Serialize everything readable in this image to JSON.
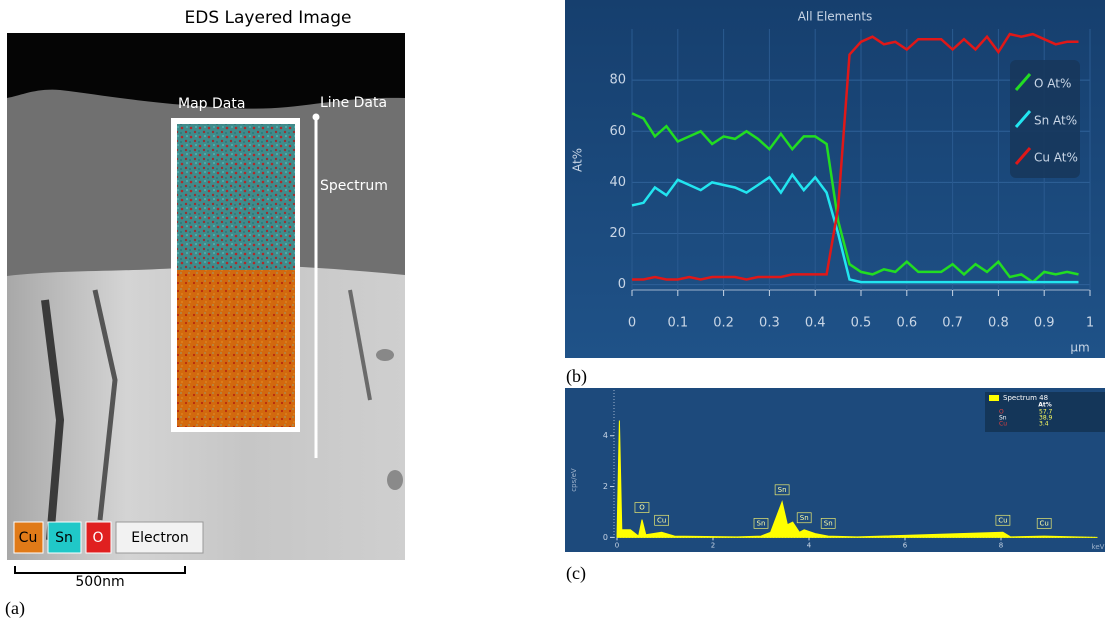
{
  "panel_a": {
    "title": "EDS Layered Image",
    "map_label": "Map Data",
    "line_label": "Line Data",
    "spectrum_label": "Spectrum",
    "legend": [
      "Cu",
      "Sn",
      "O",
      "Electron"
    ],
    "scale_bar": "500nm",
    "caption": "(a)"
  },
  "chart_data": [
    {
      "type": "line",
      "title": "All Elements",
      "ylabel": "At%",
      "xlabel": "µm",
      "caption": "(b)",
      "xlim": [
        0,
        1
      ],
      "xticks": [
        0,
        0.1,
        0.2,
        0.3,
        0.4,
        0.5,
        0.6,
        0.7,
        0.8,
        0.9,
        1
      ],
      "ylim": [
        -6,
        100
      ],
      "yticks": [
        0,
        20,
        40,
        60,
        80
      ],
      "grid": true,
      "legend": "upper right",
      "x": [
        0,
        0.025,
        0.05,
        0.075,
        0.1,
        0.125,
        0.15,
        0.175,
        0.2,
        0.225,
        0.25,
        0.275,
        0.3,
        0.325,
        0.35,
        0.375,
        0.4,
        0.425,
        0.45,
        0.475,
        0.5,
        0.525,
        0.55,
        0.575,
        0.6,
        0.625,
        0.65,
        0.675,
        0.7,
        0.725,
        0.75,
        0.775,
        0.8,
        0.825,
        0.85,
        0.875,
        0.9,
        0.925,
        0.95,
        0.975
      ],
      "series": [
        {
          "name": "O At%",
          "color": "#22dd22",
          "values": [
            67,
            65,
            58,
            62,
            56,
            58,
            60,
            55,
            58,
            57,
            60,
            57,
            53,
            59,
            53,
            58,
            58,
            55,
            25,
            8,
            5,
            4,
            6,
            5,
            9,
            5,
            5,
            5,
            8,
            4,
            8,
            5,
            9,
            3,
            4,
            1,
            5,
            4,
            5,
            4
          ]
        },
        {
          "name": "Sn At%",
          "color": "#22e5f0",
          "values": [
            31,
            32,
            38,
            35,
            41,
            39,
            37,
            40,
            39,
            38,
            36,
            39,
            42,
            36,
            43,
            37,
            42,
            36,
            20,
            2,
            1,
            1,
            1,
            1,
            1,
            1,
            1,
            1,
            1,
            1,
            1,
            1,
            1,
            1,
            1,
            1,
            1,
            1,
            1,
            1
          ]
        },
        {
          "name": "Cu At%",
          "color": "#e01818",
          "values": [
            2,
            2,
            3,
            2,
            2,
            3,
            2,
            3,
            3,
            3,
            2,
            3,
            3,
            3,
            4,
            4,
            4,
            4,
            30,
            90,
            95,
            97,
            94,
            95,
            92,
            96,
            96,
            96,
            92,
            96,
            92,
            97,
            91,
            98,
            97,
            98,
            96,
            94,
            95,
            95
          ]
        }
      ]
    },
    {
      "type": "area",
      "ylabel": "cps/eV",
      "xlabel": "keV",
      "caption": "(c)",
      "xlim": [
        0,
        10
      ],
      "xticks": [
        0,
        2,
        4,
        6,
        8
      ],
      "ylim": [
        -0.3,
        5.8
      ],
      "yticks": [
        0,
        2,
        4
      ],
      "x": [
        0,
        0.05,
        0.1,
        0.28,
        0.45,
        0.52,
        0.6,
        0.93,
        1.2,
        2.5,
        3.0,
        3.2,
        3.44,
        3.55,
        3.66,
        3.8,
        3.9,
        4.13,
        4.4,
        5,
        8.04,
        8.2,
        8.9,
        10
      ],
      "series": [
        {
          "name": "Spectrum 48",
          "color": "#ffff00",
          "values": [
            0,
            4.6,
            0.3,
            0.3,
            0.05,
            0.7,
            0.1,
            0.2,
            0.05,
            0.02,
            0.05,
            0.2,
            1.4,
            0.5,
            0.6,
            0.2,
            0.3,
            0.15,
            0.05,
            0.02,
            0.2,
            0.02,
            0.05,
            0
          ]
        }
      ],
      "peak_labels": [
        {
          "text": "O",
          "x": 0.52
        },
        {
          "text": "Cu",
          "x": 0.93
        },
        {
          "text": "Sn",
          "x": 3.0
        },
        {
          "text": "Sn",
          "x": 3.44
        },
        {
          "text": "Sn",
          "x": 3.9
        },
        {
          "text": "Sn",
          "x": 4.4
        },
        {
          "text": "Cu",
          "x": 8.04
        },
        {
          "text": "Cu",
          "x": 8.9
        }
      ],
      "table": {
        "header": "At%",
        "rows": [
          [
            "O",
            57.7
          ],
          [
            "Sn",
            38.9
          ],
          [
            "Cu",
            3.4
          ]
        ]
      }
    }
  ]
}
